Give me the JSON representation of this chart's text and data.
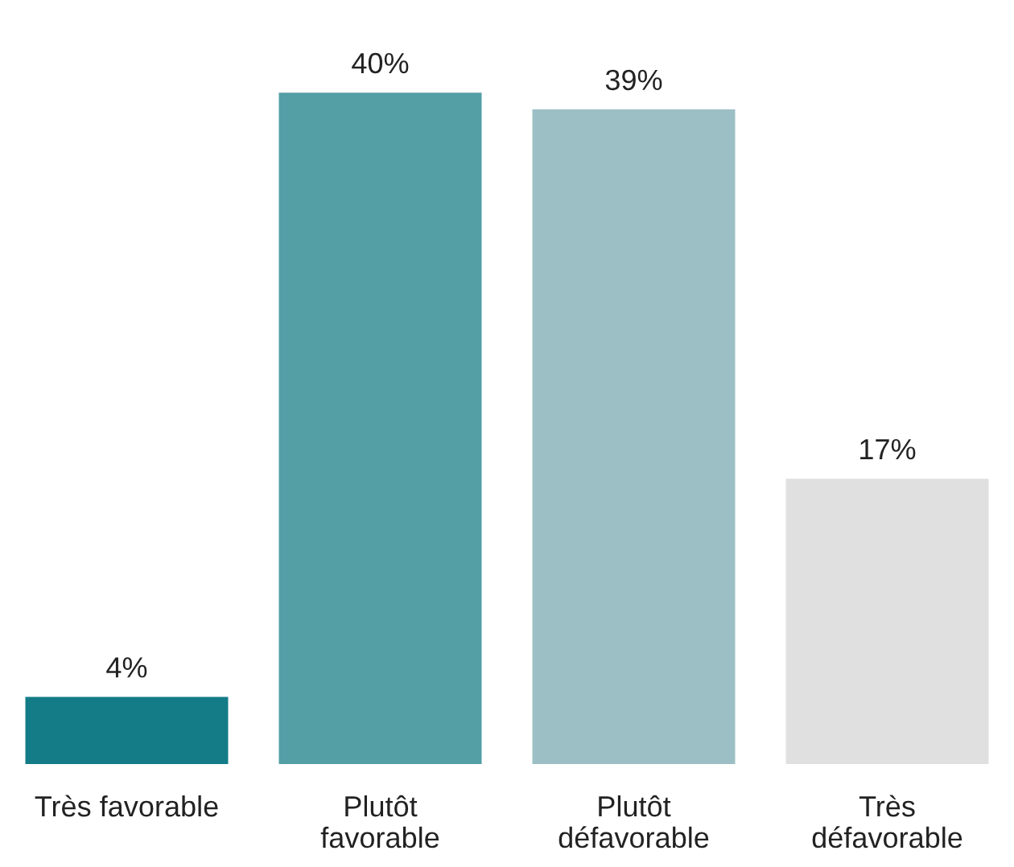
{
  "chart_data": {
    "type": "bar",
    "categories": [
      "Très favorable",
      "Plutôt\nfavorable",
      "Plutôt\ndéfavorable",
      "Très\ndéfavorable"
    ],
    "values": [
      4,
      40,
      39,
      17
    ],
    "colors": [
      "#137c87",
      "#549ea6",
      "#9bbfc5",
      "#e0e0e0"
    ],
    "value_labels": [
      "4%",
      "40%",
      "39%",
      "17%"
    ],
    "grid": false,
    "legend": false
  }
}
